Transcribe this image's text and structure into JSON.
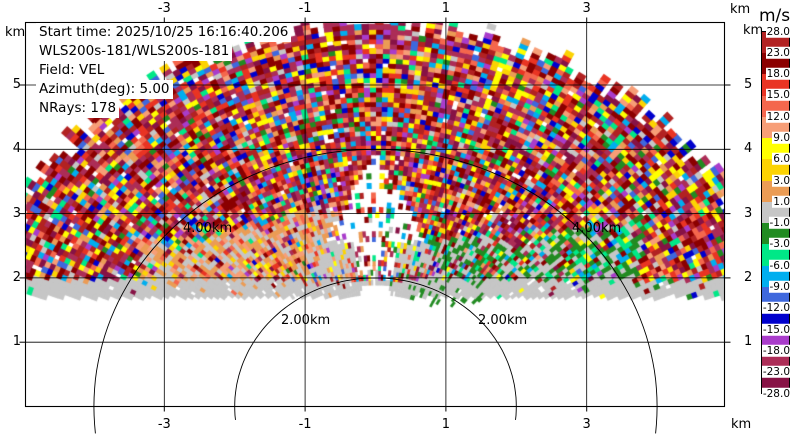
{
  "figure": {
    "title_lines": [
      "Start time: 2025/10/25 16:16:40.206",
      "WLS200s-181/WLS200s-181",
      "Field: VEL",
      "Azimuth(deg): 5.00",
      "NRays: 178"
    ]
  },
  "axes": {
    "x_tick_labels": [
      "-3",
      "-1",
      "1",
      "3"
    ],
    "x_tick_km": [
      -3,
      -1,
      1,
      3
    ],
    "x_unit_label": "km",
    "y_tick_labels": [
      "5",
      "4",
      "3",
      "2",
      "1"
    ],
    "y_tick_km": [
      5,
      4,
      3,
      2,
      1
    ],
    "y_unit_label": "km",
    "xlim_km": [
      -4.97,
      4.96
    ],
    "ylim_km": [
      0,
      5.97
    ],
    "grid": true
  },
  "range_rings": [
    {
      "radius_km": 2,
      "label": "2.00km"
    },
    {
      "radius_km": 4,
      "label": "4.00km"
    }
  ],
  "colorbar": {
    "title": "m/s",
    "boundary_labels": [
      "28.0",
      "23.0",
      "18.0",
      "15.0",
      "12.0",
      "9.0",
      "6.0",
      "3.0",
      "1.0",
      "-1.0",
      "-3.0",
      "-6.0",
      "-9.0",
      "-12.0",
      "-15.0",
      "-18.0",
      "-23.0",
      "-28.0"
    ],
    "band_colors_top_to_bottom": [
      "#b22222",
      "#8b0000",
      "#e93423",
      "#f4674d",
      "#f79e77",
      "#ffff00",
      "#fcd303",
      "#eb9c55",
      "#c6c6c6",
      "#228b22",
      "#00e887",
      "#00aeef",
      "#3f68dd",
      "#0000cd",
      "#a93ccb",
      "#ac2d57",
      "#871245"
    ]
  },
  "chart_data": {
    "type": "heatmap",
    "scan_type": "lidar RHI Doppler velocity fan (elevation sweep at fixed azimuth)",
    "field": "VEL",
    "units": "m/s",
    "start_time": "2025/10/25 16:16:40.206",
    "instrument": "WLS200s-181/WLS200s-181",
    "azimuth_deg": 5.0,
    "n_rays": 178,
    "velocity_boundaries_mps": [
      28,
      23,
      18,
      15,
      12,
      9,
      6,
      3,
      1,
      -1,
      -3,
      -6,
      -9,
      -12,
      -15,
      -18,
      -23,
      -28
    ],
    "range_rings_km": [
      2,
      4
    ],
    "regions": [
      "random folded-noise speckle filling the fan above the aerosol layer (~2-3 km AGL) out to ~6 km range",
      "gray near-zero velocity layer at ~1.7-2.0 km height across full width",
      "coherent positive (orange/tan) velocity layer left of center between ~1.9 and ~2.8 km height",
      "coherent negative (green) velocity layer right of center between ~1.9 and ~3.0 km height",
      "sparse radial streaks over gray in a wedge above the lidar converging to the minimum-range arc",
      "white no-data notch directly above the instrument below minimum range"
    ],
    "render_model": {
      "r_min_km": 1.78,
      "r_max_km": 6.08,
      "gate_km": 0.075,
      "elev_start_deg": 1.0,
      "elev_end_deg": 179.0,
      "gray_base_km": 1.7,
      "gray_top_km": 1.97,
      "triangle_apex_km": 3.98,
      "triangle_halfwidth_km": 1.07,
      "triangle_base_km": 1.9,
      "seed": 123457,
      "gray": "#c6c6c6",
      "noise_palette": [
        [
          "#8b0000",
          3.2
        ],
        [
          "#b22222",
          2.6
        ],
        [
          "#ac2d57",
          3.0
        ],
        [
          "#871245",
          2.2
        ],
        [
          "#e93423",
          1.6
        ],
        [
          "#f4674d",
          1.2
        ],
        [
          "#f79e77",
          1.2
        ],
        [
          "#eb9c55",
          1.0
        ],
        [
          "#ffff00",
          1.6
        ],
        [
          "#fcd303",
          1.2
        ],
        [
          "#c6c6c6",
          1.0
        ],
        [
          "#228b22",
          0.9
        ],
        [
          "#00e887",
          0.9
        ],
        [
          "#00aeef",
          1.2
        ],
        [
          "#3f68dd",
          0.9
        ],
        [
          "#0000cd",
          1.1
        ],
        [
          "#a93ccb",
          1.0
        ]
      ],
      "orange_palette": [
        [
          "#eb9c55",
          5
        ],
        [
          "#f79e77",
          2.2
        ],
        [
          "#fcd303",
          1.2
        ],
        [
          "#f4674d",
          1.0
        ],
        [
          "#c6c6c6",
          1.6
        ],
        [
          "#e93423",
          0.5
        ]
      ],
      "green_palette": [
        [
          "#228b22",
          5
        ],
        [
          "#00e887",
          1.4
        ],
        [
          "#c6c6c6",
          1.6
        ],
        [
          "#00aeef",
          0.6
        ],
        [
          "#8b0000",
          0.7
        ],
        [
          "#ffff00",
          0.5
        ]
      ]
    }
  }
}
